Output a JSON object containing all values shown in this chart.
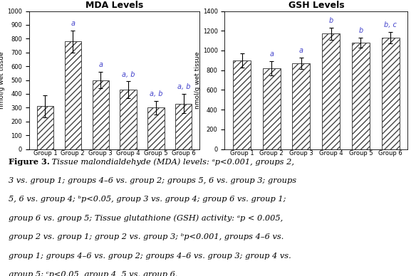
{
  "mda_values": [
    310,
    780,
    500,
    430,
    300,
    330
  ],
  "mda_errors": [
    80,
    80,
    60,
    60,
    50,
    70
  ],
  "mda_labels": [
    "",
    "a",
    "a",
    "a, b",
    "a, b",
    "a, b"
  ],
  "mda_title": "MDA Levels",
  "mda_ylabel": "nmol/g wet tissue",
  "mda_ylim": [
    0,
    1000
  ],
  "mda_yticks": [
    0,
    100,
    200,
    300,
    400,
    500,
    600,
    700,
    800,
    900,
    1000
  ],
  "gsh_values": [
    900,
    820,
    870,
    1170,
    1080,
    1130
  ],
  "gsh_errors": [
    70,
    70,
    60,
    60,
    50,
    60
  ],
  "gsh_labels": [
    "",
    "a",
    "a",
    "b",
    "b",
    "b, c"
  ],
  "gsh_title": "GSH Levels",
  "gsh_ylabel": "nmol/g wet tissue",
  "gsh_ylim": [
    0,
    1400
  ],
  "gsh_yticks": [
    0,
    200,
    400,
    600,
    800,
    1000,
    1200,
    1400
  ],
  "groups": [
    "Group 1",
    "Group 2",
    "Group 3",
    "Group 4",
    "Group 5",
    "Group 6"
  ],
  "hatch": "////",
  "bar_facecolor": "white",
  "bar_edgecolor": "#444444",
  "annotation_color": "#4444cc",
  "annotation_fontsize": 7,
  "title_fontsize": 9,
  "tick_fontsize": 6,
  "ylabel_fontsize": 6.5
}
